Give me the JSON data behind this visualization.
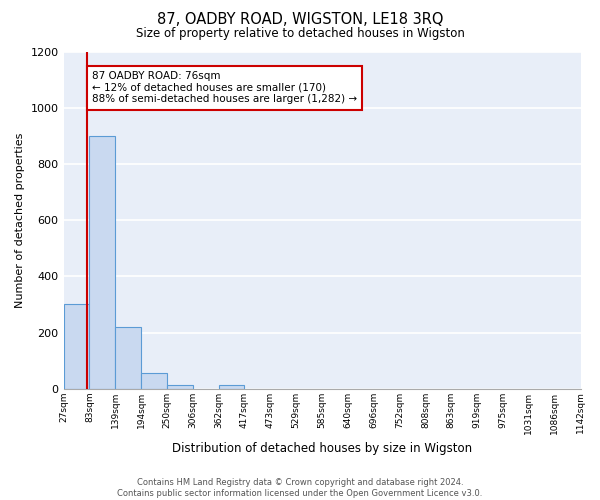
{
  "title": "87, OADBY ROAD, WIGSTON, LE18 3RQ",
  "subtitle": "Size of property relative to detached houses in Wigston",
  "xlabel": "Distribution of detached houses by size in Wigston",
  "ylabel": "Number of detached properties",
  "bar_values": [
    300,
    900,
    220,
    55,
    15,
    0,
    15,
    0,
    0,
    0,
    0,
    0,
    0,
    0,
    0,
    0,
    0,
    0,
    0,
    0
  ],
  "bar_labels": [
    "27sqm",
    "83sqm",
    "139sqm",
    "194sqm",
    "250sqm",
    "306sqm",
    "362sqm",
    "417sqm",
    "473sqm",
    "529sqm",
    "585sqm",
    "640sqm",
    "696sqm",
    "752sqm",
    "808sqm",
    "863sqm",
    "919sqm",
    "975sqm",
    "1031sqm",
    "1086sqm",
    "1142sqm"
  ],
  "bar_color": "#c9d9f0",
  "bar_edge_color": "#5b9bd5",
  "background_color": "#e8eef8",
  "grid_color": "#ffffff",
  "vline_color": "#cc0000",
  "vline_position": 0.9,
  "ylim": [
    0,
    1200
  ],
  "yticks": [
    0,
    200,
    400,
    600,
    800,
    1000,
    1200
  ],
  "annotation_text": "87 OADBY ROAD: 76sqm\n← 12% of detached houses are smaller (170)\n88% of semi-detached houses are larger (1,282) →",
  "annotation_box_color": "#ffffff",
  "annotation_box_edge": "#cc0000",
  "footer_text": "Contains HM Land Registry data © Crown copyright and database right 2024.\nContains public sector information licensed under the Open Government Licence v3.0.",
  "fig_facecolor": "#ffffff",
  "title_fontsize": 11,
  "subtitle_fontsize": 9
}
